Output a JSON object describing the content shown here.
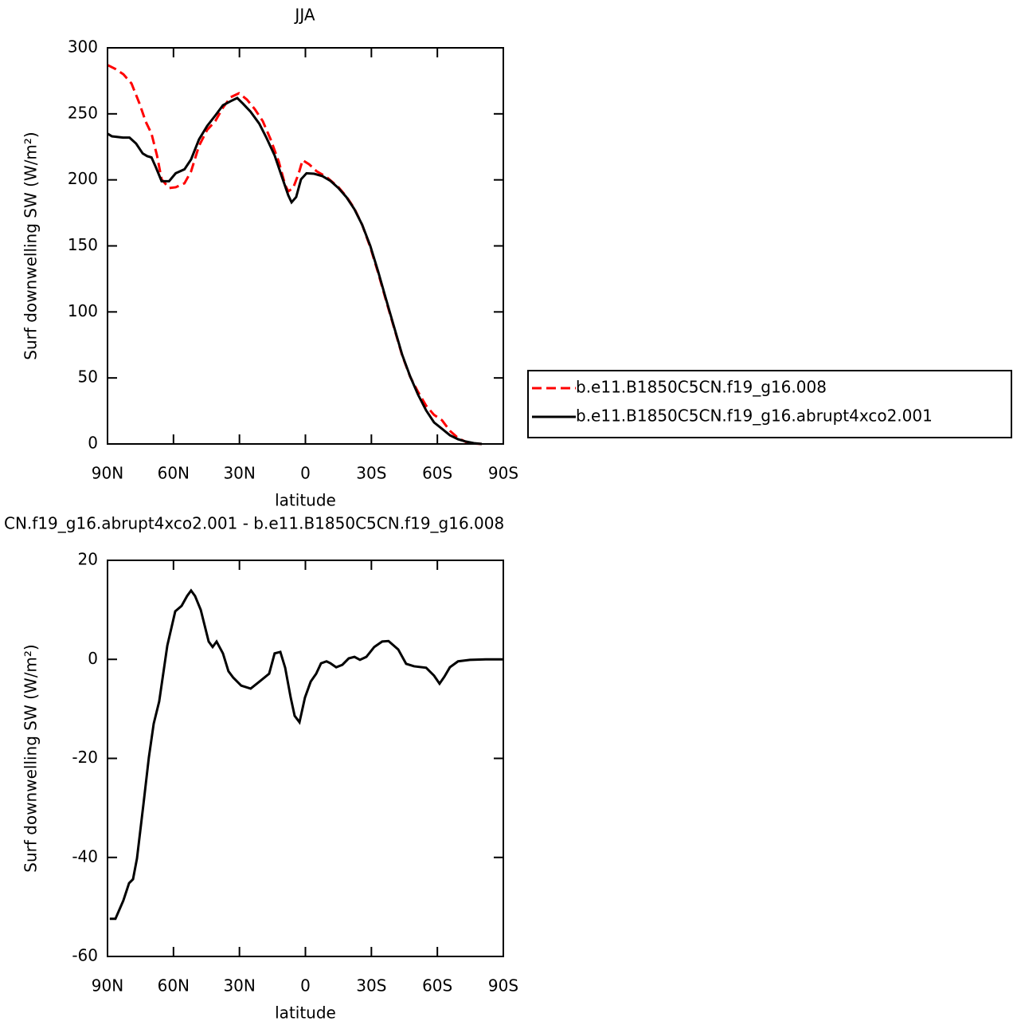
{
  "chart_data": [
    {
      "type": "line",
      "title": "JJA",
      "xlabel": "latitude",
      "ylabel": "Surf downwelling SW (W/m²)",
      "xlim": [
        90,
        -90
      ],
      "xticks": [
        {
          "value": 90,
          "label": "90N"
        },
        {
          "value": 60,
          "label": "60N"
        },
        {
          "value": 30,
          "label": "30N"
        },
        0,
        {
          "value": -30,
          "label": "30S"
        },
        {
          "value": -60,
          "label": "60S"
        },
        {
          "value": -90,
          "label": "90S"
        }
      ],
      "ylim": [
        0,
        300
      ],
      "yticks": [
        0,
        50,
        100,
        150,
        200,
        250,
        300
      ],
      "legend": "right",
      "series": [
        {
          "name": "b.e11.B1850C5CN.f19_g16.008",
          "color": "#ff0000",
          "linestyle": "dashed",
          "x": [
            90,
            86.4,
            82.8,
            79.1,
            75.5,
            72.6,
            70,
            67.5,
            65.4,
            62,
            59,
            55,
            52,
            48.4,
            44.7,
            41,
            37.5,
            34,
            30.2,
            26.6,
            23,
            19.4,
            15.8,
            12.1,
            9.2,
            7.8,
            5.6,
            3.1,
            1.3,
            -1.6,
            -5.2,
            -9.6,
            -15,
            -18.6,
            -22.2,
            -25.8,
            -29.5,
            -33,
            -36.6,
            -40.3,
            -44,
            -47.6,
            -51.2,
            -54.9,
            -58.5,
            -62.1,
            -65.7,
            -69.4,
            -73,
            -76.6,
            -80.2
          ],
          "values": [
            287,
            284,
            280,
            273,
            258,
            244,
            235,
            218.5,
            200.4,
            193.8,
            194.4,
            197.4,
            206.4,
            225.7,
            237.8,
            244.5,
            254.7,
            262.6,
            265.6,
            260.8,
            253.5,
            244.5,
            230.6,
            213.7,
            196,
            191.3,
            193.8,
            204.6,
            214.9,
            211.9,
            206.4,
            202.2,
            194.5,
            187.5,
            178.5,
            166,
            149,
            130,
            109,
            88,
            67,
            51,
            39.5,
            29,
            22,
            18,
            10,
            4.5,
            1.5,
            0.3,
            0
          ]
        },
        {
          "name": "b.e11.B1850C5CN.f19_g16.abrupt4xco2.001",
          "color": "#000000",
          "linestyle": "solid",
          "x": [
            90,
            88,
            83,
            80,
            77,
            74,
            72,
            70,
            68,
            65.4,
            62,
            59,
            55,
            52,
            48.4,
            44.7,
            41,
            37.5,
            34,
            31,
            28.4,
            25,
            21,
            17.7,
            14,
            10.3,
            7.8,
            6.3,
            4.2,
            2,
            -0.5,
            -4,
            -7.8,
            -11.4,
            -15,
            -18.6,
            -22.2,
            -25.8,
            -29.5,
            -33,
            -36.6,
            -40.3,
            -44,
            -47.6,
            -51.2,
            -54.9,
            -58.5,
            -62.1,
            -65.7,
            -69.4,
            -73,
            -76.6,
            -80.2
          ],
          "values": [
            235,
            233,
            232,
            232,
            227.5,
            220,
            218,
            217,
            209.5,
            199,
            199,
            205,
            208,
            215.5,
            230.6,
            240.8,
            248.7,
            256.5,
            259.6,
            262,
            257.7,
            251.7,
            242.6,
            231.8,
            218.5,
            200.4,
            188.3,
            183,
            187,
            200.4,
            205,
            204.6,
            202.8,
            199.2,
            193.8,
            187,
            178,
            166,
            150,
            131,
            110,
            88.7,
            67.6,
            51.3,
            37.4,
            25.4,
            16.3,
            11.5,
            6.6,
            3.6,
            1.8,
            0.6,
            0
          ]
        }
      ]
    },
    {
      "type": "line",
      "title": "CN.f19_g16.abrupt4xco2.001 - b.e11.B1850C5CN.f19_g16.008",
      "xlabel": "latitude",
      "ylabel": "Surf downwelling SW (W/m²)",
      "xlim": [
        90,
        -90
      ],
      "xticks": [
        {
          "value": 90,
          "label": "90N"
        },
        {
          "value": 60,
          "label": "60N"
        },
        {
          "value": 30,
          "label": "30N"
        },
        0,
        {
          "value": -30,
          "label": "30S"
        },
        {
          "value": -60,
          "label": "60S"
        },
        {
          "value": -90,
          "label": "90S"
        }
      ],
      "ylim": [
        -60,
        20
      ],
      "yticks": [
        -60,
        -40,
        -20,
        0,
        20
      ],
      "series": [
        {
          "color": "#000000",
          "linestyle": "solid",
          "x": [
            89,
            86.4,
            82.8,
            80.2,
            78.4,
            76.6,
            73.7,
            71.2,
            69,
            66.5,
            62.8,
            59.2,
            56.3,
            53.8,
            52,
            50.2,
            47.6,
            45.8,
            44,
            42.2,
            40.4,
            37.5,
            35,
            32.8,
            29.2,
            24.9,
            21.2,
            16.5,
            14,
            11.4,
            9.2,
            6.7,
            4.9,
            2.7,
            0.2,
            -2.4,
            -4.9,
            -7.1,
            -9.6,
            -11.4,
            -14,
            -16.8,
            -19.7,
            -22.3,
            -24.8,
            -27.7,
            -31.3,
            -34.9,
            -37.8,
            -42.2,
            -45.8,
            -49.4,
            -54.9,
            -58.5,
            -61,
            -63.2,
            -65.7,
            -69.4,
            -74.8,
            -82,
            -90
          ],
          "values": [
            -52.4,
            -52.4,
            -48.7,
            -45.2,
            -44.4,
            -40.2,
            -29.4,
            -19.8,
            -13,
            -8.5,
            2.8,
            9.7,
            10.8,
            12.8,
            13.9,
            12.8,
            10,
            6.8,
            3.6,
            2.5,
            3.6,
            1.2,
            -2.4,
            -3.7,
            -5.3,
            -5.9,
            -4.6,
            -2.9,
            1.2,
            1.5,
            -1.7,
            -7.7,
            -11.4,
            -12.7,
            -7.7,
            -4.5,
            -2.9,
            -0.8,
            -0.4,
            -0.8,
            -1.6,
            -1.1,
            0.2,
            0.5,
            -0.1,
            0.5,
            2.5,
            3.6,
            3.7,
            2,
            -0.9,
            -1.4,
            -1.7,
            -3.3,
            -4.9,
            -3.5,
            -1.6,
            -0.4,
            -0.1,
            0,
            0
          ]
        }
      ]
    }
  ]
}
